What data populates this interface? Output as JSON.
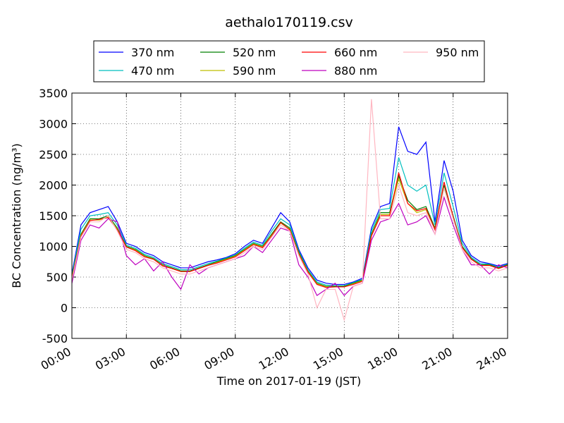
{
  "chart_data": {
    "type": "line",
    "title": "aethalo170119.csv",
    "x_label": "Time on 2017-01-19 (JST)",
    "y_label": "BC Concentration (ng/m³)",
    "x": [
      0,
      0.5,
      1,
      1.5,
      2,
      2.5,
      3,
      3.5,
      4,
      4.5,
      5,
      5.5,
      6,
      6.5,
      7,
      7.5,
      8,
      8.5,
      9,
      9.5,
      10,
      10.5,
      11,
      11.5,
      12,
      12.5,
      13,
      13.5,
      14,
      14.5,
      15,
      15.5,
      16,
      16.5,
      17,
      17.5,
      18,
      18.5,
      19,
      19.5,
      20,
      20.5,
      21,
      21.5,
      22,
      22.5,
      23,
      23.5,
      24
    ],
    "xlim": [
      0,
      24
    ],
    "xticks": [
      {
        "value": 0,
        "label": "00:00"
      },
      {
        "value": 3,
        "label": "03:00"
      },
      {
        "value": 6,
        "label": "06:00"
      },
      {
        "value": 9,
        "label": "09:00"
      },
      {
        "value": 12,
        "label": "12:00"
      },
      {
        "value": 15,
        "label": "15:00"
      },
      {
        "value": 18,
        "label": "18:00"
      },
      {
        "value": 21,
        "label": "21:00"
      },
      {
        "value": 24,
        "label": "24:00"
      }
    ],
    "ylim": [
      -500,
      3500
    ],
    "yticks": [
      -500,
      0,
      500,
      1000,
      1500,
      2000,
      2500,
      3000,
      3500
    ],
    "grid": true,
    "legend": "top",
    "series": [
      {
        "name": "370 nm",
        "color": "#0000ff",
        "values": [
          550,
          1350,
          1550,
          1600,
          1650,
          1400,
          1050,
          1000,
          900,
          850,
          750,
          700,
          650,
          650,
          700,
          750,
          780,
          820,
          880,
          1000,
          1100,
          1050,
          1300,
          1550,
          1400,
          950,
          650,
          450,
          400,
          380,
          380,
          420,
          480,
          1300,
          1650,
          1700,
          2950,
          2550,
          2500,
          2700,
          1400,
          2400,
          1900,
          1100,
          850,
          750,
          720,
          680,
          720
        ]
      },
      {
        "name": "470 nm",
        "color": "#00bfbf",
        "values": [
          520,
          1280,
          1500,
          1520,
          1550,
          1350,
          1020,
          970,
          870,
          820,
          720,
          670,
          620,
          620,
          670,
          720,
          760,
          810,
          860,
          970,
          1070,
          1020,
          1250,
          1450,
          1350,
          920,
          620,
          420,
          370,
          360,
          360,
          410,
          460,
          1250,
          1600,
          1620,
          2450,
          2000,
          1900,
          2000,
          1350,
          2200,
          1650,
          1050,
          820,
          720,
          710,
          660,
          710
        ]
      },
      {
        "name": "520 nm",
        "color": "#008000",
        "values": [
          500,
          1200,
          1450,
          1450,
          1500,
          1300,
          1000,
          950,
          850,
          800,
          700,
          650,
          600,
          600,
          650,
          700,
          750,
          800,
          850,
          950,
          1050,
          1000,
          1200,
          1400,
          1300,
          900,
          600,
          400,
          350,
          350,
          350,
          400,
          450,
          1200,
          1550,
          1550,
          2150,
          1750,
          1600,
          1650,
          1300,
          2000,
          1500,
          1000,
          800,
          700,
          700,
          650,
          700
        ]
      },
      {
        "name": "590 nm",
        "color": "#bfbf00",
        "values": [
          480,
          1180,
          1430,
          1430,
          1480,
          1280,
          990,
          940,
          840,
          790,
          690,
          640,
          590,
          590,
          640,
          690,
          740,
          790,
          840,
          940,
          1040,
          990,
          1180,
          1380,
          1280,
          880,
          590,
          390,
          340,
          340,
          340,
          390,
          440,
          1180,
          1520,
          1520,
          2100,
          1700,
          1550,
          1600,
          1280,
          1950,
          1450,
          980,
          790,
          690,
          690,
          640,
          690
        ]
      },
      {
        "name": "660 nm",
        "color": "#ff0000",
        "values": [
          470,
          1170,
          1420,
          1440,
          1470,
          1270,
          990,
          930,
          830,
          790,
          680,
          640,
          590,
          590,
          640,
          690,
          730,
          780,
          830,
          930,
          1030,
          980,
          1170,
          1390,
          1270,
          870,
          580,
          380,
          330,
          340,
          340,
          380,
          430,
          1170,
          1500,
          1500,
          2200,
          1700,
          1580,
          1620,
          1270,
          2050,
          1480,
          980,
          790,
          690,
          690,
          640,
          690
        ]
      },
      {
        "name": "880 nm",
        "color": "#bf00bf",
        "values": [
          400,
          1100,
          1350,
          1300,
          1450,
          1400,
          850,
          700,
          800,
          600,
          750,
          500,
          300,
          700,
          550,
          650,
          700,
          750,
          800,
          850,
          1000,
          900,
          1100,
          1300,
          1250,
          700,
          500,
          200,
          300,
          400,
          200,
          350,
          400,
          1100,
          1400,
          1450,
          1700,
          1350,
          1400,
          1500,
          1200,
          1800,
          1350,
          950,
          700,
          700,
          550,
          700,
          650
        ]
      },
      {
        "name": "950 nm",
        "color": "#ffb6c1",
        "values": [
          450,
          1150,
          1400,
          1400,
          1500,
          1250,
          950,
          900,
          800,
          750,
          650,
          600,
          550,
          550,
          600,
          650,
          700,
          750,
          800,
          900,
          1000,
          950,
          1150,
          1350,
          1250,
          850,
          550,
          0,
          300,
          300,
          -200,
          350,
          400,
          3400,
          1450,
          1450,
          2000,
          1550,
          1500,
          1550,
          1200,
          1950,
          1450,
          950,
          750,
          650,
          650,
          600,
          650
        ]
      }
    ]
  }
}
